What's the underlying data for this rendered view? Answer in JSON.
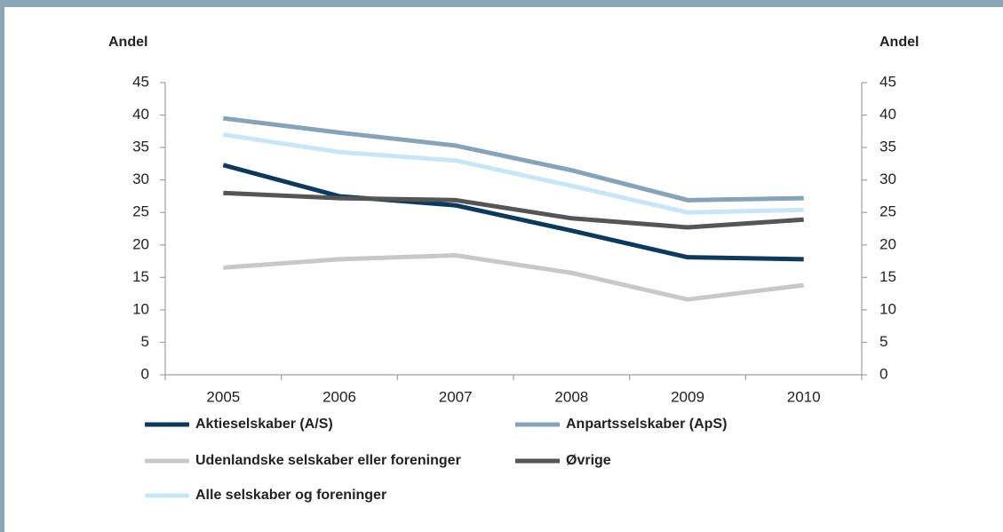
{
  "chart_data": {
    "type": "line",
    "y_label": "Andel",
    "y2_label": "Andel",
    "categories": [
      "2005",
      "2006",
      "2007",
      "2008",
      "2009",
      "2010"
    ],
    "series": [
      {
        "name": "Aktieselskaber (A/S)",
        "color": "#0d3a5c",
        "values": [
          32.3,
          27.5,
          26.1,
          22.2,
          18.1,
          17.8
        ]
      },
      {
        "name": "Anpartsselskaber (ApS)",
        "color": "#87a3b8",
        "values": [
          39.5,
          37.3,
          35.3,
          31.5,
          26.9,
          27.2
        ]
      },
      {
        "name": "Udenlandske selskaber eller foreninger",
        "color": "#c8c8c8",
        "values": [
          16.5,
          17.8,
          18.4,
          15.7,
          11.6,
          13.8
        ]
      },
      {
        "name": "Øvrige",
        "color": "#555555",
        "values": [
          28.0,
          27.2,
          26.9,
          24.1,
          22.7,
          23.9
        ]
      },
      {
        "name": "Alle selskaber og foreninger",
        "color": "#c8e6f5",
        "values": [
          37.0,
          34.3,
          33.0,
          29.1,
          25.0,
          25.4
        ]
      }
    ],
    "ylim": [
      0,
      45
    ],
    "yticks": [
      0,
      5,
      10,
      15,
      20,
      25,
      30,
      35,
      40,
      45
    ],
    "y2lim": [
      0,
      45
    ],
    "y2ticks": [
      0,
      5,
      10,
      15,
      20,
      25,
      30,
      35,
      40,
      45
    ],
    "grid": false
  }
}
